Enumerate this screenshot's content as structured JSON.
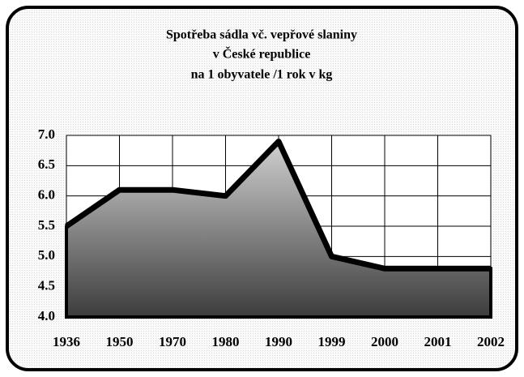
{
  "chart_data": {
    "type": "area",
    "title": [
      "Spotřeba sádla vč. vepřové slaniny",
      "v České republice",
      "na 1 obyvatele /1 rok v kg"
    ],
    "categories": [
      "1936",
      "1950",
      "1970",
      "1980",
      "1990",
      "1999",
      "2000",
      "2001",
      "2002"
    ],
    "values": [
      5.5,
      6.1,
      6.1,
      6.0,
      6.9,
      5.0,
      4.8,
      4.8,
      4.8
    ],
    "ylim": [
      4,
      7
    ],
    "yticks": [
      {
        "value": 4,
        "label": "4.0"
      },
      4.5,
      {
        "value": 5,
        "label": "5.0"
      },
      5.5,
      {
        "value": 6,
        "label": "6.0"
      },
      6.5,
      {
        "value": 7,
        "label": "7.0"
      }
    ],
    "grid": true
  }
}
